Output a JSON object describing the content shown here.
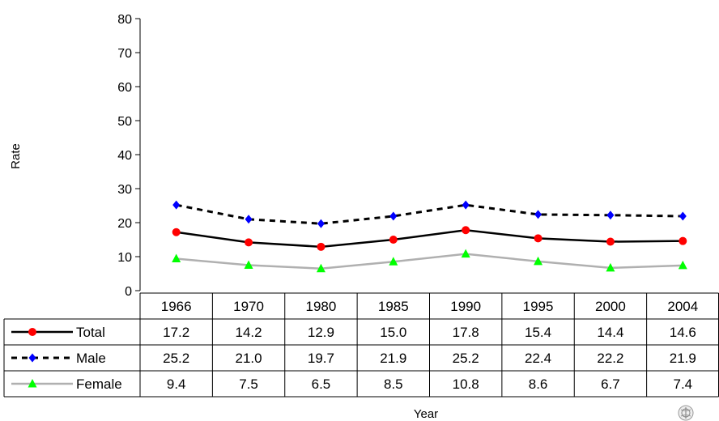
{
  "chart_data": {
    "type": "line",
    "xlabel": "Year",
    "ylabel": "Rate",
    "ylim": [
      0,
      80
    ],
    "yticks": [
      0,
      10,
      20,
      30,
      40,
      50,
      60,
      70,
      80
    ],
    "categories": [
      "1966",
      "1970",
      "1980",
      "1985",
      "1990",
      "1995",
      "2000",
      "2004"
    ],
    "series": [
      {
        "name": "Total",
        "values": [
          17.2,
          14.2,
          12.9,
          15.0,
          17.8,
          15.4,
          14.4,
          14.6
        ],
        "labels": [
          "17.2",
          "14.2",
          "12.9",
          "15.0",
          "17.8",
          "15.4",
          "14.4",
          "14.6"
        ],
        "color": "#ff0000",
        "line_color": "#000000",
        "marker": "circle",
        "line_style": "solid"
      },
      {
        "name": "Male",
        "values": [
          25.2,
          21.0,
          19.7,
          21.9,
          25.2,
          22.4,
          22.2,
          21.9
        ],
        "labels": [
          "25.2",
          "21.0",
          "19.7",
          "21.9",
          "25.2",
          "22.4",
          "22.2",
          "21.9"
        ],
        "color": "#0000ff",
        "line_color": "#000000",
        "marker": "diamond",
        "line_style": "dashed"
      },
      {
        "name": "Female",
        "values": [
          9.4,
          7.5,
          6.5,
          8.5,
          10.8,
          8.6,
          6.7,
          7.4
        ],
        "labels": [
          "9.4",
          "7.5",
          "6.5",
          "8.5",
          "10.8",
          "8.6",
          "6.7",
          "7.4"
        ],
        "color": "#00ff00",
        "line_color": "#b0b0b0",
        "marker": "triangle",
        "line_style": "solid"
      }
    ],
    "grid": false,
    "legend": "data-table"
  },
  "logo_icon": "who-emblem-icon"
}
